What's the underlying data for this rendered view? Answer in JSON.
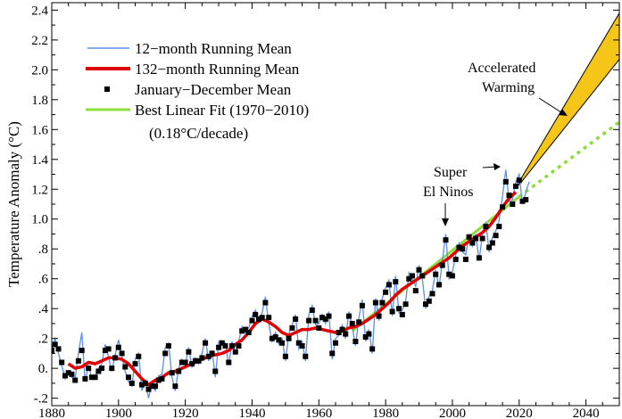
{
  "chart_data": {
    "type": "line",
    "title": "",
    "xlabel": "",
    "ylabel": "Temperature Anomaly (°C)",
    "xlim": [
      1880,
      2050
    ],
    "ylim": [
      -0.25,
      2.45
    ],
    "x_ticks": [
      1880,
      1900,
      1920,
      1940,
      1960,
      1980,
      2000,
      2020,
      2040
    ],
    "x_tick_labels": [
      "1880",
      "1900",
      "1920",
      "1940",
      "1960",
      "1980",
      "2000",
      "2020",
      "2040"
    ],
    "y_ticks": [
      -0.2,
      0,
      0.2,
      0.4,
      0.6,
      0.8,
      1.0,
      1.2,
      1.4,
      1.6,
      1.8,
      2.0,
      2.2,
      2.4
    ],
    "y_tick_labels": [
      "-.2",
      "0.",
      ".2",
      ".4",
      ".6",
      ".8",
      "1.0",
      "1.2",
      "1.4",
      "1.6",
      "1.8",
      "2.0",
      "2.2",
      "2.4"
    ],
    "grid": false,
    "legend": {
      "position": "top-left",
      "entries": [
        {
          "label": "12−month Running Mean",
          "color": "#5b8ee6",
          "style": "thin-line"
        },
        {
          "label": "132−month Running Mean",
          "color": "#e00000",
          "style": "thick-line"
        },
        {
          "label": "January−December Mean",
          "color": "#000000",
          "style": "square-marker"
        },
        {
          "label": "Best Linear Fit (1970−2010)",
          "color": "#8fdc3c",
          "style": "line"
        }
      ],
      "note": "(0.18°C/decade)"
    },
    "annual_years": [
      1880,
      1881,
      1882,
      1883,
      1884,
      1885,
      1886,
      1887,
      1888,
      1889,
      1890,
      1891,
      1892,
      1893,
      1894,
      1895,
      1896,
      1897,
      1898,
      1899,
      1900,
      1901,
      1902,
      1903,
      1904,
      1905,
      1906,
      1907,
      1908,
      1909,
      1910,
      1911,
      1912,
      1913,
      1914,
      1915,
      1916,
      1917,
      1918,
      1919,
      1920,
      1921,
      1922,
      1923,
      1924,
      1925,
      1926,
      1927,
      1928,
      1929,
      1930,
      1931,
      1932,
      1933,
      1934,
      1935,
      1936,
      1937,
      1938,
      1939,
      1940,
      1941,
      1942,
      1943,
      1944,
      1945,
      1946,
      1947,
      1948,
      1949,
      1950,
      1951,
      1952,
      1953,
      1954,
      1955,
      1956,
      1957,
      1958,
      1959,
      1960,
      1961,
      1962,
      1963,
      1964,
      1965,
      1966,
      1967,
      1968,
      1969,
      1970,
      1971,
      1972,
      1973,
      1974,
      1975,
      1976,
      1977,
      1978,
      1979,
      1980,
      1981,
      1982,
      1983,
      1984,
      1985,
      1986,
      1987,
      1988,
      1989,
      1990,
      1991,
      1992,
      1993,
      1994,
      1995,
      1996,
      1997,
      1998,
      1999,
      2000,
      2001,
      2002,
      2003,
      2004,
      2005,
      2006,
      2007,
      2008,
      2009,
      2010,
      2011,
      2012,
      2013,
      2014,
      2015,
      2016,
      2017,
      2018,
      2019,
      2020,
      2021,
      2022
    ],
    "annual_mean": [
      0.12,
      0.16,
      0.13,
      0.04,
      -0.05,
      -0.03,
      -0.04,
      -0.08,
      0.05,
      0.12,
      -0.07,
      0.0,
      -0.06,
      -0.06,
      -0.02,
      0.0,
      0.12,
      0.13,
      0.0,
      0.07,
      0.14,
      0.1,
      0.01,
      -0.06,
      -0.1,
      0.03,
      0.08,
      -0.11,
      -0.1,
      -0.14,
      -0.12,
      -0.12,
      -0.08,
      -0.07,
      0.1,
      0.15,
      -0.03,
      -0.12,
      -0.02,
      0.04,
      0.04,
      0.11,
      0.03,
      0.05,
      0.05,
      0.07,
      0.17,
      0.08,
      0.1,
      -0.02,
      0.14,
      0.17,
      0.15,
      0.04,
      0.15,
      0.11,
      0.15,
      0.25,
      0.26,
      0.24,
      0.32,
      0.36,
      0.33,
      0.34,
      0.44,
      0.34,
      0.2,
      0.21,
      0.19,
      0.17,
      0.08,
      0.2,
      0.27,
      0.33,
      0.17,
      0.15,
      0.08,
      0.32,
      0.39,
      0.32,
      0.27,
      0.34,
      0.33,
      0.35,
      0.1,
      0.17,
      0.24,
      0.26,
      0.23,
      0.35,
      0.3,
      0.18,
      0.31,
      0.42,
      0.21,
      0.23,
      0.13,
      0.44,
      0.35,
      0.44,
      0.51,
      0.56,
      0.38,
      0.58,
      0.4,
      0.36,
      0.43,
      0.6,
      0.62,
      0.52,
      0.66,
      0.62,
      0.43,
      0.45,
      0.5,
      0.63,
      0.56,
      0.69,
      0.86,
      0.63,
      0.62,
      0.73,
      0.81,
      0.8,
      0.73,
      0.88,
      0.84,
      0.87,
      0.74,
      0.87,
      0.95,
      0.81,
      0.84,
      0.89,
      0.95,
      1.08,
      1.25,
      1.16,
      1.1,
      1.22,
      1.26,
      1.12,
      1.13
    ],
    "running_12m_x": [
      1880,
      1881,
      1882,
      1883,
      1884,
      1885,
      1886,
      1887,
      1888,
      1889,
      1890,
      1891,
      1892,
      1893,
      1894,
      1895,
      1896,
      1897,
      1898,
      1899,
      1900,
      1901,
      1902,
      1903,
      1904,
      1905,
      1906,
      1907,
      1908,
      1909,
      1910,
      1911,
      1912,
      1913,
      1914,
      1915,
      1916,
      1917,
      1918,
      1919,
      1920,
      1921,
      1922,
      1923,
      1924,
      1925,
      1926,
      1927,
      1928,
      1929,
      1930,
      1931,
      1932,
      1933,
      1934,
      1935,
      1936,
      1937,
      1938,
      1939,
      1940,
      1941,
      1942,
      1943,
      1944,
      1945,
      1946,
      1947,
      1948,
      1949,
      1950,
      1951,
      1952,
      1953,
      1954,
      1955,
      1956,
      1957,
      1958,
      1959,
      1960,
      1961,
      1962,
      1963,
      1964,
      1965,
      1966,
      1967,
      1968,
      1969,
      1970,
      1971,
      1972,
      1973,
      1974,
      1975,
      1976,
      1977,
      1978,
      1979,
      1980,
      1981,
      1982,
      1983,
      1984,
      1985,
      1986,
      1987,
      1988,
      1989,
      1990,
      1991,
      1992,
      1993,
      1994,
      1995,
      1996,
      1997,
      1998,
      1999,
      2000,
      2001,
      2002,
      2003,
      2004,
      2005,
      2006,
      2007,
      2008,
      2009,
      2010,
      2011,
      2012,
      2013,
      2014,
      2015,
      2016,
      2017,
      2018,
      2019,
      2020,
      2021,
      2022,
      2023
    ],
    "running_12m_y": [
      0.13,
      0.2,
      0.1,
      0.02,
      -0.07,
      -0.02,
      -0.06,
      -0.07,
      0.1,
      0.24,
      -0.09,
      0.02,
      -0.07,
      -0.05,
      0.0,
      0.03,
      0.16,
      0.08,
      -0.02,
      0.09,
      0.19,
      0.08,
      -0.02,
      -0.09,
      -0.12,
      0.06,
      0.1,
      -0.15,
      -0.09,
      -0.2,
      -0.1,
      -0.15,
      -0.05,
      -0.04,
      0.14,
      0.17,
      -0.06,
      -0.15,
      0.0,
      0.06,
      0.02,
      0.14,
      0.01,
      0.07,
      0.03,
      0.1,
      0.2,
      0.05,
      0.12,
      -0.06,
      0.18,
      0.16,
      0.17,
      0.02,
      0.18,
      0.09,
      0.18,
      0.28,
      0.24,
      0.27,
      0.35,
      0.39,
      0.31,
      0.37,
      0.48,
      0.3,
      0.18,
      0.24,
      0.16,
      0.2,
      0.05,
      0.23,
      0.29,
      0.36,
      0.13,
      0.18,
      0.05,
      0.36,
      0.42,
      0.29,
      0.3,
      0.36,
      0.3,
      0.38,
      0.06,
      0.2,
      0.22,
      0.29,
      0.2,
      0.38,
      0.28,
      0.15,
      0.34,
      0.46,
      0.18,
      0.26,
      0.1,
      0.47,
      0.32,
      0.47,
      0.54,
      0.59,
      0.35,
      0.62,
      0.37,
      0.39,
      0.45,
      0.64,
      0.6,
      0.55,
      0.69,
      0.6,
      0.4,
      0.48,
      0.52,
      0.66,
      0.54,
      0.72,
      0.9,
      0.6,
      0.64,
      0.76,
      0.84,
      0.78,
      0.76,
      0.9,
      0.82,
      0.9,
      0.72,
      0.9,
      0.98,
      0.78,
      0.88,
      0.92,
      0.99,
      1.15,
      1.33,
      1.12,
      1.13,
      1.25,
      1.3,
      1.1,
      1.18,
      1.25
    ],
    "running_132m_x": [
      1885,
      1887,
      1889,
      1891,
      1893,
      1895,
      1897,
      1899,
      1901,
      1903,
      1905,
      1907,
      1909,
      1911,
      1913,
      1915,
      1917,
      1919,
      1921,
      1923,
      1925,
      1927,
      1929,
      1931,
      1933,
      1935,
      1937,
      1939,
      1941,
      1943,
      1945,
      1947,
      1949,
      1951,
      1953,
      1955,
      1957,
      1959,
      1961,
      1963,
      1965,
      1967,
      1969,
      1971,
      1973,
      1975,
      1977,
      1979,
      1981,
      1983,
      1985,
      1987,
      1989,
      1991,
      1993,
      1995,
      1997,
      1999,
      2001,
      2003,
      2005,
      2007,
      2009,
      2011,
      2013,
      2015,
      2017,
      2019
    ],
    "running_132m_y": [
      0.03,
      0.0,
      0.01,
      0.04,
      0.03,
      0.05,
      0.07,
      0.07,
      0.06,
      0.03,
      -0.02,
      -0.07,
      -0.11,
      -0.08,
      -0.06,
      -0.03,
      -0.02,
      0.0,
      0.02,
      0.04,
      0.06,
      0.08,
      0.09,
      0.1,
      0.12,
      0.16,
      0.19,
      0.24,
      0.3,
      0.33,
      0.31,
      0.28,
      0.24,
      0.22,
      0.24,
      0.26,
      0.26,
      0.27,
      0.26,
      0.25,
      0.24,
      0.25,
      0.27,
      0.28,
      0.3,
      0.33,
      0.36,
      0.4,
      0.44,
      0.49,
      0.53,
      0.56,
      0.59,
      0.62,
      0.65,
      0.68,
      0.71,
      0.74,
      0.78,
      0.82,
      0.85,
      0.88,
      0.91,
      0.95,
      1.01,
      1.08,
      1.14,
      1.18
    ],
    "linear_fit": {
      "x": [
        1970,
        2020
      ],
      "y": [
        0.25,
        1.15
      ]
    },
    "linear_fit_extension": {
      "x": [
        2020,
        2050
      ],
      "y": [
        1.15,
        1.65
      ]
    },
    "accelerated_band": {
      "x": [
        2020,
        2050
      ],
      "lower": [
        1.23,
        2.07
      ],
      "upper": [
        1.25,
        2.38
      ],
      "color": "#f5c518"
    },
    "annotations": [
      {
        "text": "Super",
        "points_to": [
          2015,
          1.32
        ]
      },
      {
        "text": "El Ninos",
        "points_to": [
          1998,
          0.86
        ]
      },
      {
        "text": "Accelerated",
        "points_to": [
          2038,
          1.72
        ]
      },
      {
        "text": "Warming",
        "points_to": [
          2038,
          1.72
        ]
      }
    ]
  }
}
